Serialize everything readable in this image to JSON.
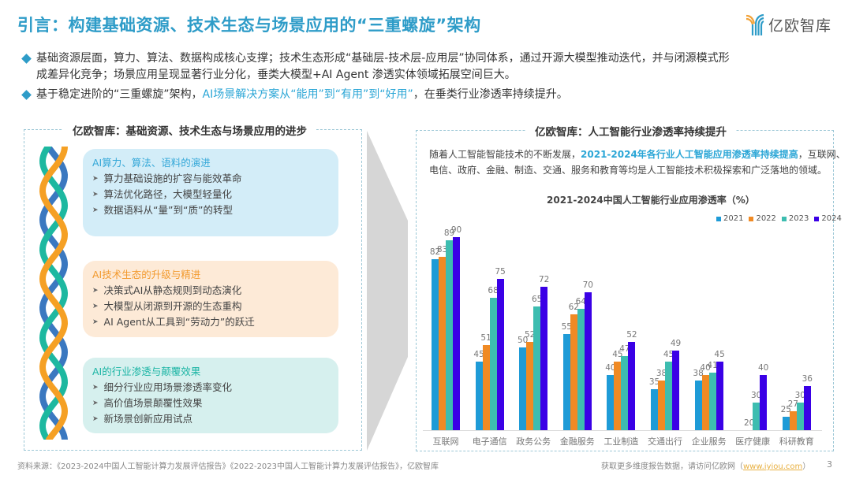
{
  "header": {
    "title": "引言：构建基础资源、技术生态与场景应用的“三重螺旋”架构",
    "logo_text": "亿欧智库",
    "logo_icon": "yiou-logo-icon"
  },
  "bullets": [
    {
      "lines": [
        "基础资源层面，算力、算法、数据构成核心支撑；技术生态形成“基础层-技术层-应用层”协同体系，通过开源大模型推动迭代，并与闭源模式形",
        "成差异化竞争；场景应用呈现显著行业分化，垂类大模型+AI Agent 渗透实体领域拓展空间巨大。"
      ]
    },
    {
      "prefix": "基于稳定进阶的“三重螺旋”架构，",
      "highlight": "AI场景解决方案从“能用”到“有用”到“好用”",
      "suffix": "，在垂类行业渗透率持续提升。"
    }
  ],
  "left_panel": {
    "title": "亿欧智库：基础资源、技术生态与场景应用的进步",
    "helix_icon": "triple-helix-icon",
    "cards": [
      {
        "title": "AI算力、算法、语料的演进",
        "title_color": "#35A8D8",
        "bg_color": "#D3EDF8",
        "items": [
          "算力基础设施的扩容与能效革命",
          "算法优化路径，大模型轻量化",
          "数据语料从“量”到“质”的转型"
        ]
      },
      {
        "title": "AI技术生态的升级与精进",
        "title_color": "#F29A2E",
        "bg_color": "#FDEAD7",
        "items": [
          "决策式AI从静态规则到动态演化",
          "大模型从闭源到开源的生态重构",
          "AI Agent从工具到“劳动力”的跃迁"
        ]
      },
      {
        "title": "AI的行业渗透与颠覆效果",
        "title_color": "#1DB5A5",
        "bg_color": "#D6F0EE",
        "items": [
          "细分行业应用场景渗透率变化",
          "高价值场景颠覆性效果",
          "新场景创新应用试点"
        ]
      }
    ]
  },
  "right_panel": {
    "title": "亿欧智库：人工智能行业渗透率持续提升",
    "desc": {
      "prefix": "随着人工智能智能技术的不断发展，",
      "highlight": "2021-2024年各行业人工智能应用渗透率持续提高",
      "suffix": "，互联网、",
      "line2": "电信、政府、金融、制造、交通、服务和教育等均是人工智能技术积极探索和广泛落地的领域。"
    }
  },
  "chart_data": {
    "type": "bar",
    "title": "2021-2024中国人工智能行业应用渗透率（%）",
    "xlabel": "",
    "ylabel": "",
    "ylim": [
      20,
      92
    ],
    "grid": false,
    "legend_position": "top-right",
    "categories": [
      "互联网",
      "电子通信",
      "政务公务",
      "金融服务",
      "工业制造",
      "交通出行",
      "企业服务",
      "医疗健康",
      "科研教育"
    ],
    "series": [
      {
        "name": "2021",
        "color": "#1E9BD7",
        "values": [
          82,
          45,
          50,
          55,
          40,
          35,
          38,
          null,
          25
        ]
      },
      {
        "name": "2022",
        "color": "#F08A24",
        "values": [
          83,
          51,
          52,
          62,
          45,
          38,
          40,
          20,
          27
        ]
      },
      {
        "name": "2023",
        "color": "#3DBDB0",
        "values": [
          89,
          68,
          65,
          64,
          47,
          45,
          41,
          30,
          30
        ]
      },
      {
        "name": "2024",
        "color": "#3A00E6",
        "values": [
          90,
          75,
          72,
          70,
          52,
          49,
          45,
          40,
          36
        ]
      }
    ]
  },
  "footer": {
    "source": "资料来源：《2023-2024中国人工智能计算力发展评估报告》《2022-2023中国人工智能计算力发展评估报告》，亿欧智库",
    "cta_prefix": "获取更多维度报告数据，请访问亿欧网（",
    "cta_link": "www.iyiou.com",
    "cta_suffix": "）",
    "page_number": "3"
  }
}
